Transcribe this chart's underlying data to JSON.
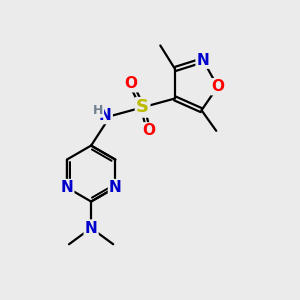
{
  "bg_color": "#ebebeb",
  "atom_colors": {
    "C": "#000000",
    "N": "#0000cc",
    "O": "#ff0000",
    "S": "#bbbb00",
    "H": "#708090"
  },
  "bond_color": "#000000",
  "bond_width": 1.6,
  "font_size_atoms": 11,
  "font_size_H": 9,
  "font_size_methyl": 9
}
